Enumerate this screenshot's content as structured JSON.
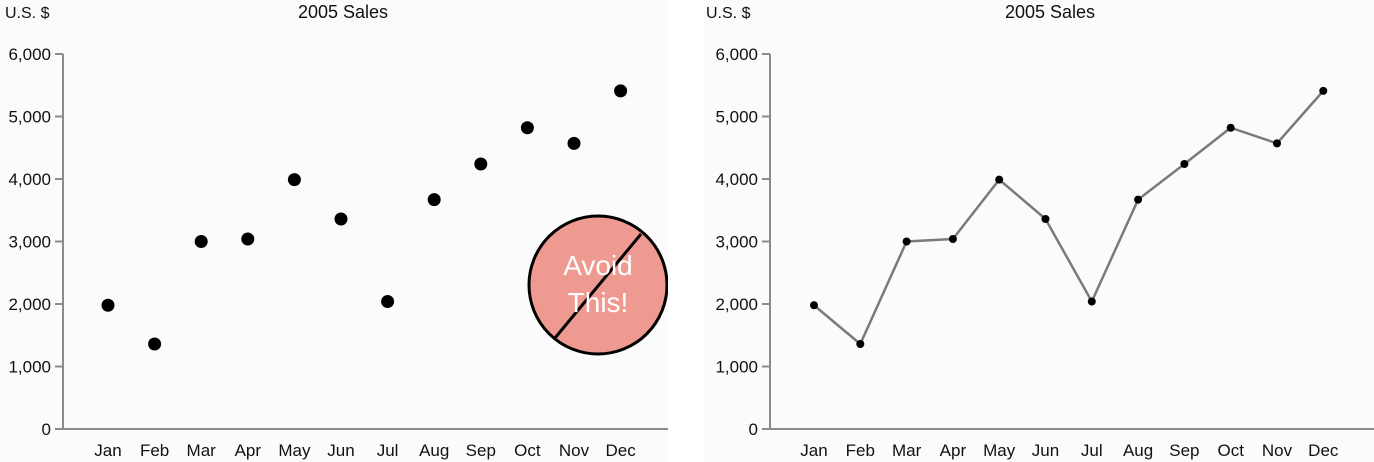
{
  "chart_data": [
    {
      "type": "scatter",
      "title": "2005 Sales",
      "ylabel": "U.S. $",
      "xlabel": "",
      "categories": [
        "Jan",
        "Feb",
        "Mar",
        "Apr",
        "May",
        "Jun",
        "Jul",
        "Aug",
        "Sep",
        "Oct",
        "Nov",
        "Dec"
      ],
      "values": [
        1980,
        1360,
        3000,
        3040,
        3990,
        3360,
        2040,
        3670,
        4240,
        4820,
        4570,
        5410
      ],
      "ylim": [
        0,
        6000
      ],
      "yticks": [
        "0",
        "1,000",
        "2,000",
        "3,000",
        "4,000",
        "5,000",
        "6,000"
      ],
      "grid": false,
      "marker_color": "#000000",
      "annotation": {
        "line1": "Avoid",
        "line2": "This!",
        "fill": "#ee9a90",
        "stroke": "#000000"
      }
    },
    {
      "type": "line",
      "title": "2005 Sales",
      "ylabel": "U.S. $",
      "xlabel": "",
      "categories": [
        "Jan",
        "Feb",
        "Mar",
        "Apr",
        "May",
        "Jun",
        "Jul",
        "Aug",
        "Sep",
        "Oct",
        "Nov",
        "Dec"
      ],
      "values": [
        1980,
        1360,
        3000,
        3040,
        3990,
        3360,
        2040,
        3670,
        4240,
        4820,
        4570,
        5410
      ],
      "ylim": [
        0,
        6000
      ],
      "yticks": [
        "0",
        "1,000",
        "2,000",
        "3,000",
        "4,000",
        "5,000",
        "6,000"
      ],
      "grid": false,
      "line_color": "#7a7a7a",
      "marker_color": "#000000"
    }
  ]
}
